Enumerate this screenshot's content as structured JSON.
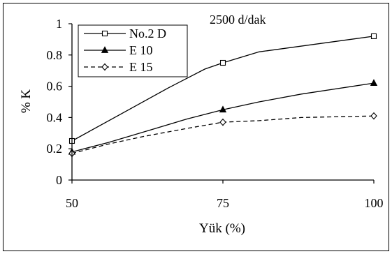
{
  "chart_data": {
    "type": "line",
    "title": "",
    "annotation": "2500 d/dak",
    "xlabel": "Yük (%)",
    "ylabel": "% K",
    "xlim": [
      50,
      100
    ],
    "ylim": [
      0,
      1
    ],
    "x_ticks": [
      "50",
      "75",
      "100"
    ],
    "x_tick_values": [
      50,
      75,
      100
    ],
    "y_ticks": [
      "0",
      "0.2",
      "0.4",
      "0.6",
      "0.8",
      "1"
    ],
    "y_tick_values": [
      0,
      0.2,
      0.4,
      0.6,
      0.8,
      1
    ],
    "grid": false,
    "legend_position": "top-left",
    "series": [
      {
        "name": "No.2 D",
        "marker": "square-open",
        "line": "solid",
        "color": "#000000",
        "x": [
          50,
          58,
          66,
          72,
          75,
          81,
          100
        ],
        "y": [
          0.25,
          0.42,
          0.59,
          0.71,
          0.75,
          0.82,
          0.92
        ],
        "marker_x": [
          50,
          75,
          100
        ],
        "marker_y": [
          0.25,
          0.75,
          0.92
        ]
      },
      {
        "name": "E 10",
        "marker": "triangle-filled",
        "line": "solid",
        "color": "#000000",
        "x": [
          50,
          56,
          63,
          69,
          75,
          81,
          88,
          100
        ],
        "y": [
          0.18,
          0.24,
          0.32,
          0.39,
          0.45,
          0.5,
          0.55,
          0.62
        ],
        "marker_x": [
          50,
          75,
          100
        ],
        "marker_y": [
          0.18,
          0.45,
          0.62
        ]
      },
      {
        "name": "E 15",
        "marker": "diamond-open",
        "line": "dashed",
        "color": "#000000",
        "x": [
          50,
          56,
          62,
          69,
          75,
          81,
          88,
          100
        ],
        "y": [
          0.17,
          0.23,
          0.28,
          0.33,
          0.37,
          0.38,
          0.4,
          0.41
        ],
        "marker_x": [
          50,
          75,
          100
        ],
        "marker_y": [
          0.17,
          0.37,
          0.41
        ]
      }
    ]
  }
}
